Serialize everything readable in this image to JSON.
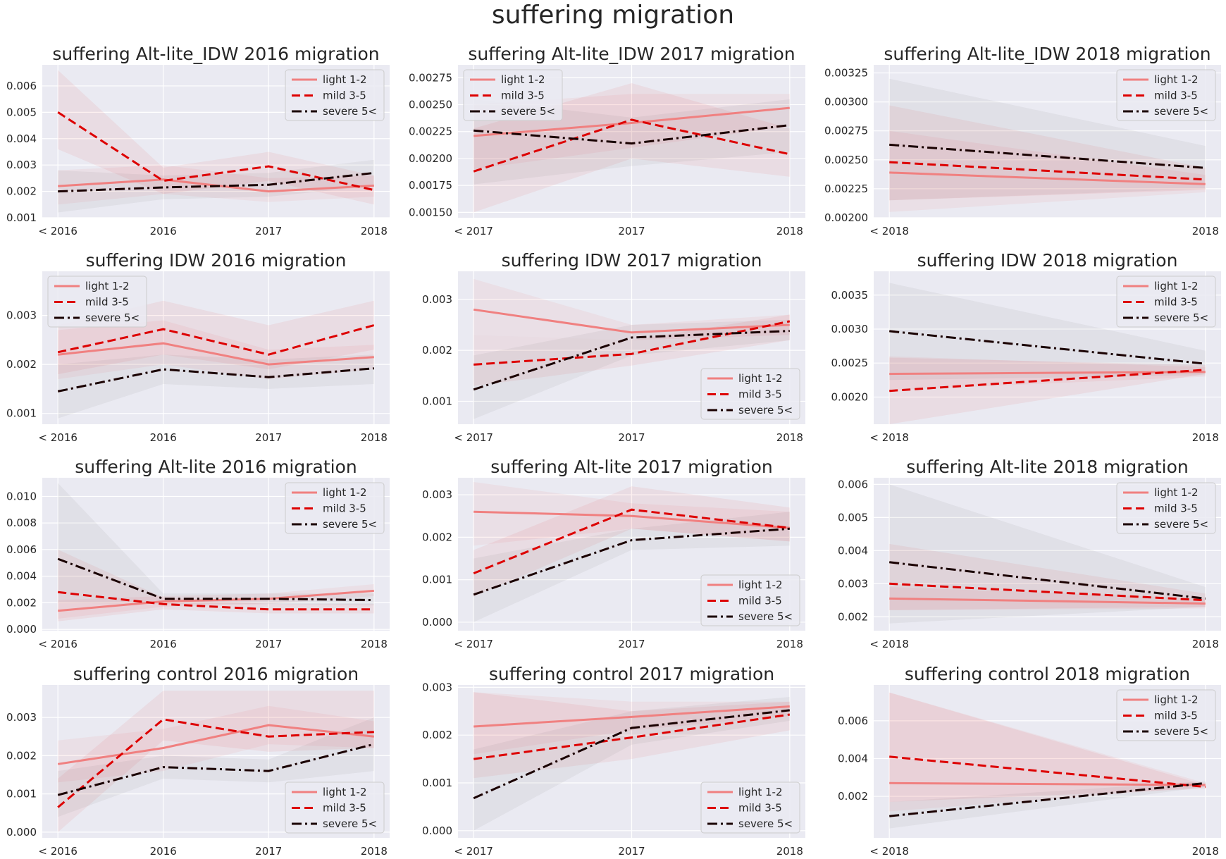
{
  "figure_title": "suffering migration",
  "colors": {
    "light": "#f08080",
    "mild": "#dd0000",
    "severe": "#1a0000",
    "axes_bg": "#eaeaf2",
    "grid": "#ffffff"
  },
  "chart_data": [
    {
      "type": "line",
      "title": "suffering Alt-lite_IDW 2016 migration",
      "categories": [
        "< 2016",
        "2016",
        "2017",
        "2018"
      ],
      "ylim": [
        0.001,
        0.0068
      ],
      "yticks": [
        "0.001",
        "0.002",
        "0.003",
        "0.004",
        "0.005",
        "0.006"
      ],
      "legend": "top-right",
      "series": [
        {
          "name": "light 1-2",
          "values": [
            0.0022,
            0.00245,
            0.002,
            0.00222
          ],
          "lower": [
            0.0015,
            0.0019,
            0.0016,
            0.0018
          ],
          "upper": [
            0.0028,
            0.003,
            0.0025,
            0.0026
          ]
        },
        {
          "name": "mild 3-5",
          "values": [
            0.005,
            0.0024,
            0.00295,
            0.00205
          ],
          "lower": [
            0.0036,
            0.0019,
            0.0024,
            0.0015
          ],
          "upper": [
            0.0066,
            0.0029,
            0.0035,
            0.0026
          ]
        },
        {
          "name": "severe 5<",
          "values": [
            0.002,
            0.00215,
            0.00225,
            0.0027
          ],
          "lower": [
            0.0012,
            0.0017,
            0.0018,
            0.0022
          ],
          "upper": [
            0.0028,
            0.0026,
            0.0027,
            0.0032
          ]
        }
      ]
    },
    {
      "type": "line",
      "title": "suffering Alt-lite_IDW 2017 migration",
      "categories": [
        "< 2017",
        "2017",
        "2018"
      ],
      "ylim": [
        0.00145,
        0.00287
      ],
      "yticks": [
        "0.00150",
        "0.00175",
        "0.00200",
        "0.00225",
        "0.00250",
        "0.00275"
      ],
      "legend": "top-left",
      "series": [
        {
          "name": "light 1-2",
          "values": [
            0.00221,
            0.00233,
            0.00247
          ],
          "lower": [
            0.0019,
            0.0021,
            0.0023
          ],
          "upper": [
            0.0025,
            0.0026,
            0.0026
          ]
        },
        {
          "name": "mild 3-5",
          "values": [
            0.00188,
            0.00236,
            0.00204
          ],
          "lower": [
            0.0015,
            0.002,
            0.00183
          ],
          "upper": [
            0.00228,
            0.0027,
            0.00228
          ]
        },
        {
          "name": "severe 5<",
          "values": [
            0.00226,
            0.00214,
            0.00231
          ],
          "lower": [
            0.00176,
            0.00193,
            0.00206
          ],
          "upper": [
            0.00255,
            0.00238,
            0.00255
          ]
        }
      ]
    },
    {
      "type": "line",
      "title": "suffering Alt-lite_IDW 2018 migration",
      "categories": [
        "< 2018",
        "2018"
      ],
      "ylim": [
        0.002,
        0.00332
      ],
      "yticks": [
        "0.00200",
        "0.00225",
        "0.00250",
        "0.00275",
        "0.00300",
        "0.00325"
      ],
      "legend": "top-right",
      "series": [
        {
          "name": "light 1-2",
          "values": [
            0.00239,
            0.00229
          ],
          "lower": [
            0.00205,
            0.00222
          ],
          "upper": [
            0.00275,
            0.00237
          ]
        },
        {
          "name": "mild 3-5",
          "values": [
            0.00248,
            0.00233
          ],
          "lower": [
            0.00215,
            0.00224
          ],
          "upper": [
            0.00297,
            0.00243
          ]
        },
        {
          "name": "severe 5<",
          "values": [
            0.00263,
            0.00243
          ],
          "lower": [
            0.00215,
            0.00225
          ],
          "upper": [
            0.0032,
            0.00262
          ]
        }
      ]
    },
    {
      "type": "line",
      "title": "suffering IDW 2016 migration",
      "categories": [
        "< 2016",
        "2016",
        "2017",
        "2018"
      ],
      "ylim": [
        0.00078,
        0.0039
      ],
      "yticks": [
        "0.001",
        "0.002",
        "0.003"
      ],
      "legend": "top-left",
      "series": [
        {
          "name": "light 1-2",
          "values": [
            0.0022,
            0.00243,
            0.002,
            0.00215
          ],
          "lower": [
            0.0017,
            0.002,
            0.0017,
            0.0019
          ],
          "upper": [
            0.0027,
            0.0029,
            0.0023,
            0.0024
          ]
        },
        {
          "name": "mild 3-5",
          "values": [
            0.00225,
            0.00272,
            0.0022,
            0.0028
          ],
          "lower": [
            0.0018,
            0.0022,
            0.0019,
            0.0023
          ],
          "upper": [
            0.0028,
            0.0033,
            0.0028,
            0.0033
          ]
        },
        {
          "name": "severe 5<",
          "values": [
            0.00145,
            0.0019,
            0.00174,
            0.00192
          ],
          "lower": [
            0.0009,
            0.0016,
            0.0015,
            0.0016
          ],
          "upper": [
            0.002,
            0.0022,
            0.0021,
            0.0022
          ]
        }
      ]
    },
    {
      "type": "line",
      "title": "suffering IDW 2017 migration",
      "categories": [
        "< 2017",
        "2017",
        "2018"
      ],
      "ylim": [
        0.00055,
        0.00355
      ],
      "yticks": [
        "0.001",
        "0.002",
        "0.003"
      ],
      "legend": "bottom-right",
      "series": [
        {
          "name": "light 1-2",
          "values": [
            0.0028,
            0.00235,
            0.0025
          ],
          "lower": [
            0.0023,
            0.0022,
            0.0023
          ],
          "upper": [
            0.0034,
            0.0025,
            0.0027
          ]
        },
        {
          "name": "mild 3-5",
          "values": [
            0.00172,
            0.00193,
            0.00257
          ],
          "lower": [
            0.0013,
            0.0017,
            0.0022
          ],
          "upper": [
            0.0023,
            0.0022,
            0.0027
          ]
        },
        {
          "name": "severe 5<",
          "values": [
            0.00123,
            0.00225,
            0.00238
          ],
          "lower": [
            0.00065,
            0.0019,
            0.0022
          ],
          "upper": [
            0.0019,
            0.0025,
            0.0026
          ]
        }
      ]
    },
    {
      "type": "line",
      "title": "suffering IDW 2018 migration",
      "categories": [
        "< 2018",
        "2018"
      ],
      "ylim": [
        0.0016,
        0.00385
      ],
      "yticks": [
        "0.0020",
        "0.0025",
        "0.0030",
        "0.0035"
      ],
      "legend": "top-right",
      "series": [
        {
          "name": "light 1-2",
          "values": [
            0.00234,
            0.00237
          ],
          "lower": [
            0.0021,
            0.0023
          ],
          "upper": [
            0.0026,
            0.00244
          ]
        },
        {
          "name": "mild 3-5",
          "values": [
            0.00209,
            0.0024
          ],
          "lower": [
            0.0016,
            0.00234
          ],
          "upper": [
            0.00258,
            0.00247
          ]
        },
        {
          "name": "severe 5<",
          "values": [
            0.00297,
            0.00249
          ],
          "lower": [
            0.00225,
            0.00232
          ],
          "upper": [
            0.00368,
            0.00268
          ]
        }
      ]
    },
    {
      "type": "line",
      "title": "suffering Alt-lite 2016 migration",
      "categories": [
        "< 2016",
        "2016",
        "2017",
        "2018"
      ],
      "ylim": [
        -0.0001,
        0.0114
      ],
      "yticks": [
        "0.000",
        "0.002",
        "0.004",
        "0.006",
        "0.008",
        "0.010"
      ],
      "legend": "top-right",
      "series": [
        {
          "name": "light 1-2",
          "values": [
            0.0014,
            0.0021,
            0.0023,
            0.0029
          ],
          "lower": [
            0.0008,
            0.0017,
            0.0019,
            0.0025
          ],
          "upper": [
            0.0022,
            0.0025,
            0.0027,
            0.0034
          ]
        },
        {
          "name": "mild 3-5",
          "values": [
            0.0028,
            0.0019,
            0.0015,
            0.0015
          ],
          "lower": [
            0.0006,
            0.0015,
            0.0012,
            0.0012
          ],
          "upper": [
            0.006,
            0.0024,
            0.0019,
            0.0019
          ]
        },
        {
          "name": "severe 5<",
          "values": [
            0.0053,
            0.0023,
            0.0023,
            0.0022
          ],
          "lower": [
            0.002,
            0.0019,
            0.0019,
            0.0018
          ],
          "upper": [
            0.011,
            0.0027,
            0.0027,
            0.0027
          ]
        }
      ]
    },
    {
      "type": "line",
      "title": "suffering Alt-lite 2017 migration",
      "categories": [
        "< 2017",
        "2017",
        "2018"
      ],
      "ylim": [
        -0.0002,
        0.0034
      ],
      "yticks": [
        "0.000",
        "0.001",
        "0.002",
        "0.003"
      ],
      "legend": "bottom-right",
      "series": [
        {
          "name": "light 1-2",
          "values": [
            0.0026,
            0.0025,
            0.00222
          ],
          "lower": [
            0.0018,
            0.0022,
            0.0019
          ],
          "upper": [
            0.0033,
            0.0028,
            0.0026
          ]
        },
        {
          "name": "mild 3-5",
          "values": [
            0.00115,
            0.00265,
            0.00222
          ],
          "lower": [
            0.0006,
            0.0022,
            0.0019
          ],
          "upper": [
            0.0017,
            0.0032,
            0.0027
          ]
        },
        {
          "name": "severe 5<",
          "values": [
            0.00065,
            0.00193,
            0.0022
          ],
          "lower": [
            0.0,
            0.0017,
            0.0018
          ],
          "upper": [
            0.0015,
            0.0022,
            0.0026
          ]
        }
      ]
    },
    {
      "type": "line",
      "title": "suffering Alt-lite 2018 migration",
      "categories": [
        "< 2018",
        "2018"
      ],
      "ylim": [
        0.00158,
        0.0062
      ],
      "yticks": [
        "0.002",
        "0.003",
        "0.004",
        "0.005",
        "0.006"
      ],
      "legend": "top-right",
      "series": [
        {
          "name": "light 1-2",
          "values": [
            0.00255,
            0.0024
          ],
          "lower": [
            0.0022,
            0.00225
          ],
          "upper": [
            0.0029,
            0.00255
          ]
        },
        {
          "name": "mild 3-5",
          "values": [
            0.003,
            0.0025
          ],
          "lower": [
            0.0022,
            0.0023
          ],
          "upper": [
            0.0042,
            0.0027
          ]
        },
        {
          "name": "severe 5<",
          "values": [
            0.00365,
            0.00255
          ],
          "lower": [
            0.0018,
            0.0023
          ],
          "upper": [
            0.006,
            0.0029
          ]
        }
      ]
    },
    {
      "type": "line",
      "title": "suffering control 2016 migration",
      "categories": [
        "< 2016",
        "2016",
        "2017",
        "2018"
      ],
      "ylim": [
        -0.00015,
        0.00385
      ],
      "yticks": [
        "0.000",
        "0.001",
        "0.002",
        "0.003"
      ],
      "legend": "bottom-right",
      "series": [
        {
          "name": "light 1-2",
          "values": [
            0.00178,
            0.0022,
            0.0028,
            0.0025
          ],
          "lower": [
            0.0013,
            0.0016,
            0.0023,
            0.0022
          ],
          "upper": [
            0.0024,
            0.0027,
            0.0033,
            0.0029
          ]
        },
        {
          "name": "mild 3-5",
          "values": [
            0.00065,
            0.00295,
            0.0025,
            0.00262
          ],
          "lower": [
            0.0,
            0.0024,
            0.0021,
            0.0022
          ],
          "upper": [
            0.0014,
            0.0037,
            0.0037,
            0.0037
          ]
        },
        {
          "name": "severe 5<",
          "values": [
            0.00097,
            0.0017,
            0.0016,
            0.0023
          ],
          "lower": [
            0.0004,
            0.0014,
            0.0013,
            0.0016
          ],
          "upper": [
            0.0016,
            0.002,
            0.0019,
            0.003
          ]
        }
      ]
    },
    {
      "type": "line",
      "title": "suffering control 2017 migration",
      "categories": [
        "< 2017",
        "2017",
        "2018"
      ],
      "ylim": [
        -0.00015,
        0.00305
      ],
      "yticks": [
        "0.000",
        "0.001",
        "0.002",
        "0.003"
      ],
      "legend": "bottom-right",
      "series": [
        {
          "name": "light 1-2",
          "values": [
            0.00218,
            0.00238,
            0.0026
          ],
          "lower": [
            0.0016,
            0.0021,
            0.0024
          ],
          "upper": [
            0.0029,
            0.0027,
            0.0027
          ]
        },
        {
          "name": "mild 3-5",
          "values": [
            0.0015,
            0.00195,
            0.00243
          ],
          "lower": [
            0.0011,
            0.0015,
            0.0021
          ],
          "upper": [
            0.0029,
            0.0025,
            0.0027
          ]
        },
        {
          "name": "severe 5<",
          "values": [
            0.00068,
            0.00215,
            0.00252
          ],
          "lower": [
            0.0,
            0.0018,
            0.0023
          ],
          "upper": [
            0.0017,
            0.0025,
            0.0028
          ]
        }
      ]
    },
    {
      "type": "line",
      "title": "suffering control 2018 migration",
      "categories": [
        "< 2018",
        "2018"
      ],
      "ylim": [
        -0.0002,
        0.0079
      ],
      "yticks": [
        "0.002",
        "0.004",
        "0.006"
      ],
      "legend": "top-right",
      "series": [
        {
          "name": "light 1-2",
          "values": [
            0.0027,
            0.0026
          ],
          "lower": [
            0.0012,
            0.0025
          ],
          "upper": [
            0.0075,
            0.0027
          ]
        },
        {
          "name": "mild 3-5",
          "values": [
            0.0041,
            0.0025
          ],
          "lower": [
            0.0017,
            0.0024
          ],
          "upper": [
            0.0075,
            0.0026
          ]
        },
        {
          "name": "severe 5<",
          "values": [
            0.00095,
            0.0027
          ],
          "lower": [
            0.0003,
            0.0025
          ],
          "upper": [
            0.0017,
            0.0028
          ]
        }
      ]
    }
  ]
}
